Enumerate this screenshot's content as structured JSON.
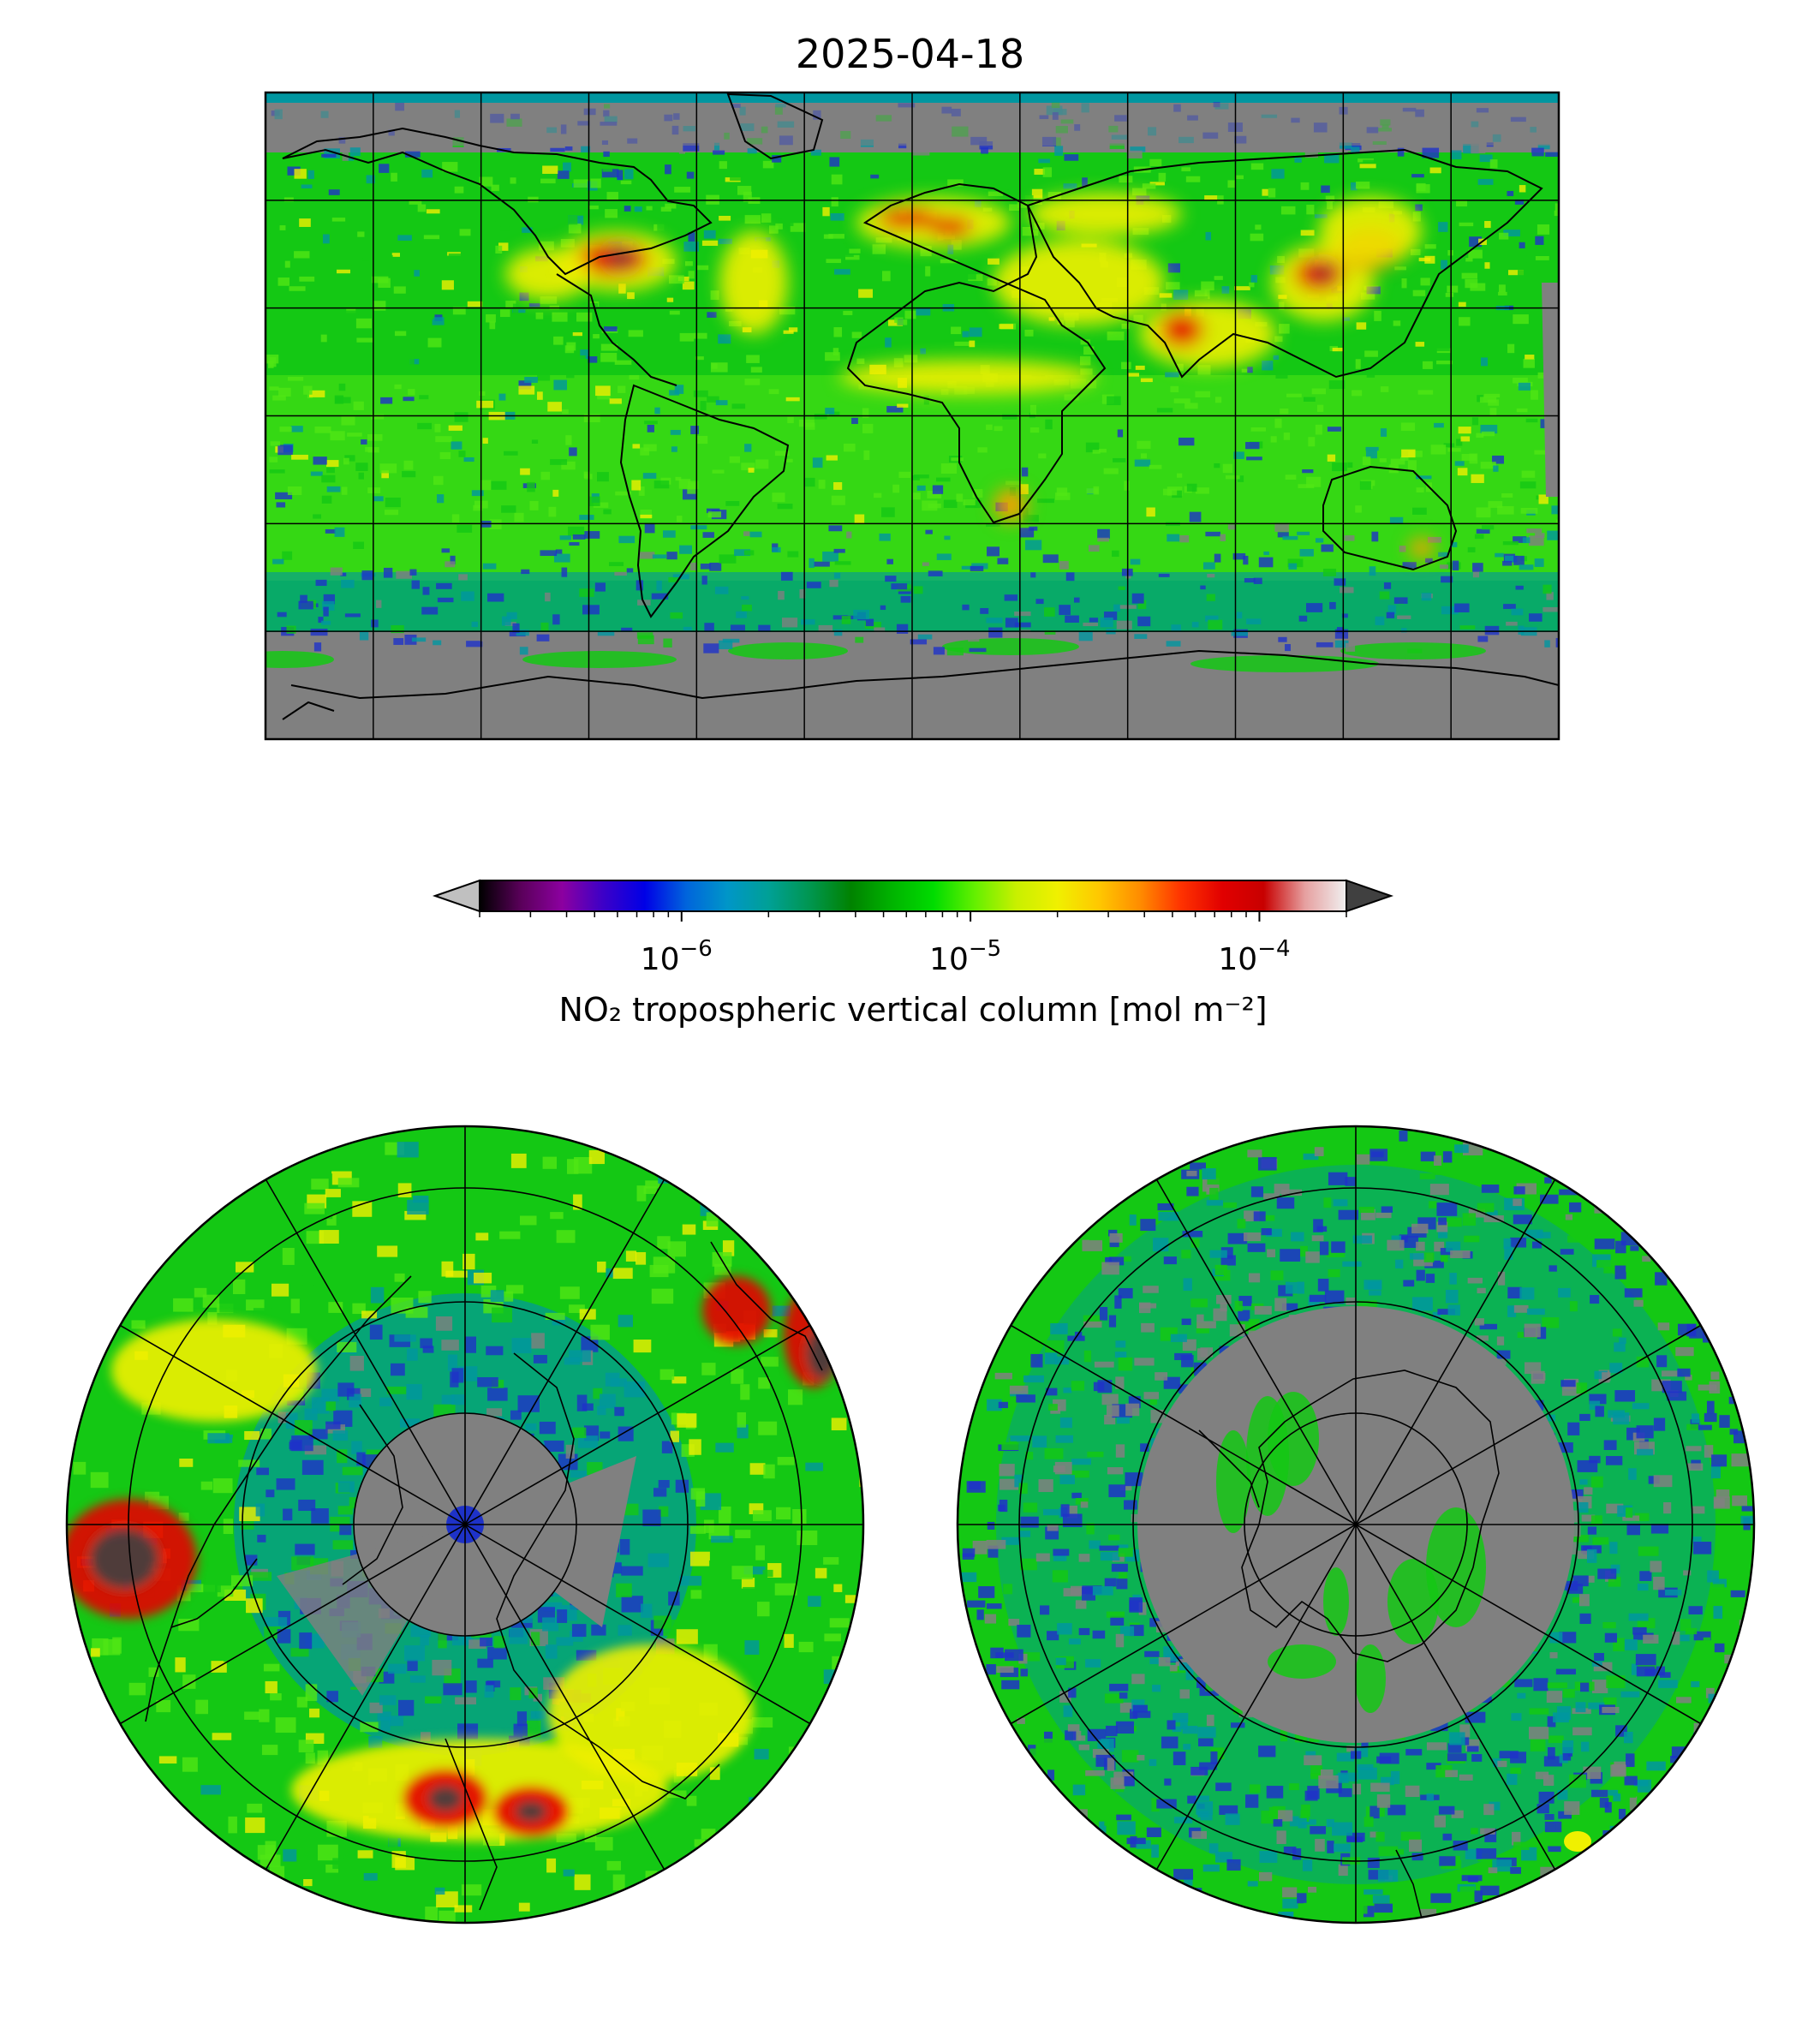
{
  "title": "2025-04-18",
  "colorbar": {
    "label": "NO₂ tropospheric vertical column [mol m⁻²]",
    "scale": "log",
    "range": [
      2e-07,
      0.0002
    ],
    "ticks": [
      {
        "value": 1e-06,
        "base": "10",
        "exp": "−6"
      },
      {
        "value": 1e-05,
        "base": "10",
        "exp": "−5"
      },
      {
        "value": 0.0001,
        "base": "10",
        "exp": "−4"
      }
    ],
    "extend": "both",
    "under_color": "#c0c0c0",
    "over_color": "#404040",
    "colors": [
      "#000000",
      "#5a005a",
      "#8c00a0",
      "#3c00c8",
      "#0000e6",
      "#0064dc",
      "#0096c8",
      "#00a096",
      "#009650",
      "#008200",
      "#00b400",
      "#00dc00",
      "#64f000",
      "#c8f000",
      "#f0f000",
      "#ffc800",
      "#ff8c00",
      "#ff3200",
      "#e10000",
      "#c80000",
      "#e6a0a0",
      "#f0f0f0"
    ]
  },
  "maps": {
    "global": {
      "projection": "plate-carree",
      "missing_color": "#808080",
      "coastline_color": "#000000"
    },
    "north_polar": {
      "projection": "north-polar-stereographic",
      "missing_color": "#808080"
    },
    "south_polar": {
      "projection": "south-polar-stereographic",
      "missing_color": "#808080"
    }
  },
  "field_colors": {
    "missing": "#808080",
    "blue": "#1e32c8",
    "teal": "#0096a0",
    "green": "#14c814",
    "bright_green": "#50e614",
    "yellow": "#f0f000",
    "orange": "#ffa000",
    "red": "#e60000",
    "saturated": "#404040"
  }
}
